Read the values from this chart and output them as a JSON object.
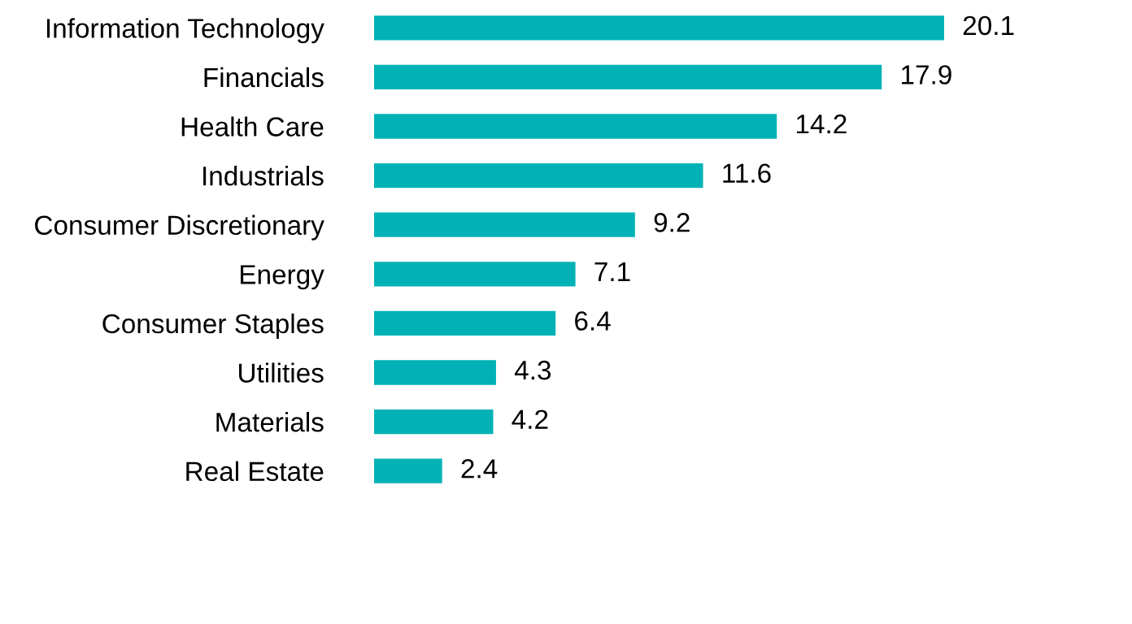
{
  "chart_data": {
    "type": "bar",
    "orientation": "horizontal",
    "categories": [
      "Information Technology",
      "Financials",
      "Health Care",
      "Industrials",
      "Consumer Discretionary",
      "Energy",
      "Consumer Staples",
      "Utilities",
      "Materials",
      "Real Estate"
    ],
    "values": [
      20.1,
      17.9,
      14.2,
      11.6,
      9.2,
      7.1,
      6.4,
      4.3,
      4.2,
      2.4
    ],
    "color": "#00b2b5",
    "data_labels": true,
    "grid": false,
    "legend": false
  }
}
